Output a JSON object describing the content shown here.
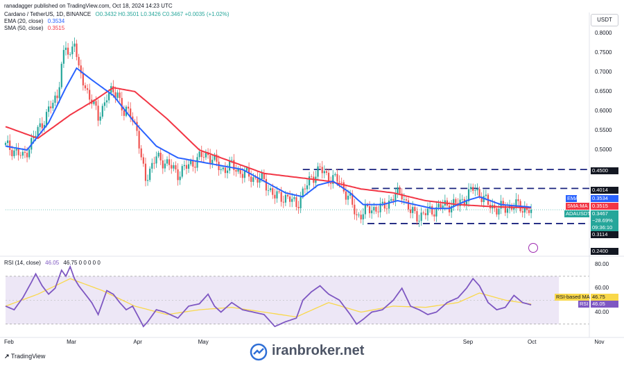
{
  "publisher_line": "ranadagger published on TradingView.com, Oct 18, 2024 14:23 UTC",
  "header": {
    "symbol": "Cardano / TetherUS, 1D, BINANCE",
    "ohlc": "O0.3432 H0.3501 L0.3426 C0.3467 +0.0035 (+1.02%)",
    "ema_label": "EMA (20, close)",
    "ema_value": "0.3534",
    "sma_label": "SMA (50, close)",
    "sma_value": "0.3515",
    "rsi_label": "RSI (14, close)",
    "rsi_value": "46.05",
    "rsi_extra": "46.75  0  0  0  0  0"
  },
  "currency_button": "USDT",
  "footer_logo": "TradingView",
  "watermark": "iranbroker.net",
  "colors": {
    "up": "#26a69a",
    "down": "#ef5350",
    "ema": "#2962ff",
    "sma": "#f23645",
    "rsi": "#7e57c2",
    "rsi_ma": "#f9d84a",
    "rsi_band": "#ede7f6",
    "levels": "#1a237e"
  },
  "badges": {
    "level_high": "0.4500",
    "level_mid": "0.4014",
    "ema": "EMA",
    "ema_value": "0.3534",
    "sma": "SMA:MA",
    "sma_value": "0.3515",
    "symbol": "ADAUSDT",
    "price": "0.3467",
    "change": "−28.69%",
    "countdown": "09:36:10",
    "level_low": "0.3114",
    "bottom": "0.2400",
    "rsi_ma_label": "RSI-based MA",
    "rsi_ma_value": "46.75",
    "rsi_label": "RSI",
    "rsi_value": "46.05"
  },
  "chart_data": {
    "type": "candlestick",
    "price_axis": {
      "ticks": [
        "0.8000",
        "0.7500",
        "0.7000",
        "0.6500",
        "0.6000",
        "0.5500",
        "0.5000",
        "0.2400"
      ],
      "ylim": [
        0.24,
        0.81
      ]
    },
    "rsi_axis": {
      "ticks": [
        "80.00",
        "60.00",
        "40.00"
      ],
      "ylim": [
        20,
        85
      ],
      "band": [
        30,
        70
      ]
    },
    "x_labels": [
      "Feb",
      "Mar",
      "Apr",
      "May",
      "Sep",
      "Oct",
      "Nov"
    ],
    "x_label_days": [
      0,
      29,
      60,
      90,
      213,
      243,
      274
    ],
    "horizontal_levels": [
      0.45,
      0.4014,
      0.3114
    ],
    "close_anchors": [
      [
        0,
        0.51
      ],
      [
        4,
        0.5
      ],
      [
        8,
        0.48
      ],
      [
        12,
        0.52
      ],
      [
        16,
        0.56
      ],
      [
        20,
        0.6
      ],
      [
        24,
        0.64
      ],
      [
        26,
        0.72
      ],
      [
        28,
        0.76
      ],
      [
        30,
        0.74
      ],
      [
        32,
        0.79
      ],
      [
        34,
        0.7
      ],
      [
        37,
        0.66
      ],
      [
        40,
        0.63
      ],
      [
        43,
        0.58
      ],
      [
        47,
        0.64
      ],
      [
        52,
        0.65
      ],
      [
        55,
        0.59
      ],
      [
        58,
        0.6
      ],
      [
        61,
        0.55
      ],
      [
        63,
        0.47
      ],
      [
        65,
        0.43
      ],
      [
        70,
        0.48
      ],
      [
        74,
        0.47
      ],
      [
        80,
        0.44
      ],
      [
        85,
        0.46
      ],
      [
        90,
        0.48
      ],
      [
        94,
        0.49
      ],
      [
        97,
        0.47
      ],
      [
        100,
        0.45
      ],
      [
        105,
        0.46
      ],
      [
        110,
        0.44
      ],
      [
        115,
        0.43
      ],
      [
        120,
        0.42
      ],
      [
        125,
        0.38
      ],
      [
        130,
        0.38
      ],
      [
        135,
        0.36
      ],
      [
        138,
        0.39
      ],
      [
        142,
        0.43
      ],
      [
        146,
        0.45
      ],
      [
        150,
        0.43
      ],
      [
        155,
        0.42
      ],
      [
        160,
        0.37
      ],
      [
        163,
        0.33
      ],
      [
        166,
        0.34
      ],
      [
        170,
        0.35
      ],
      [
        175,
        0.35
      ],
      [
        180,
        0.38
      ],
      [
        184,
        0.39
      ],
      [
        188,
        0.34
      ],
      [
        192,
        0.33
      ],
      [
        196,
        0.34
      ],
      [
        200,
        0.35
      ],
      [
        205,
        0.36
      ],
      [
        210,
        0.36
      ],
      [
        214,
        0.38
      ],
      [
        217,
        0.4
      ],
      [
        220,
        0.39
      ],
      [
        224,
        0.36
      ],
      [
        228,
        0.35
      ],
      [
        232,
        0.35
      ],
      [
        236,
        0.36
      ],
      [
        240,
        0.35
      ],
      [
        244,
        0.3467
      ]
    ],
    "ema20_anchors": [
      [
        0,
        0.51
      ],
      [
        10,
        0.5
      ],
      [
        20,
        0.57
      ],
      [
        28,
        0.66
      ],
      [
        33,
        0.71
      ],
      [
        40,
        0.68
      ],
      [
        50,
        0.64
      ],
      [
        60,
        0.57
      ],
      [
        70,
        0.51
      ],
      [
        80,
        0.48
      ],
      [
        90,
        0.47
      ],
      [
        100,
        0.46
      ],
      [
        110,
        0.45
      ],
      [
        120,
        0.42
      ],
      [
        130,
        0.39
      ],
      [
        138,
        0.38
      ],
      [
        145,
        0.41
      ],
      [
        152,
        0.42
      ],
      [
        160,
        0.39
      ],
      [
        166,
        0.36
      ],
      [
        175,
        0.36
      ],
      [
        182,
        0.37
      ],
      [
        190,
        0.36
      ],
      [
        198,
        0.35
      ],
      [
        206,
        0.35
      ],
      [
        214,
        0.37
      ],
      [
        220,
        0.38
      ],
      [
        230,
        0.36
      ],
      [
        244,
        0.3534
      ]
    ],
    "sma50_anchors": [
      [
        0,
        0.56
      ],
      [
        15,
        0.53
      ],
      [
        30,
        0.59
      ],
      [
        42,
        0.63
      ],
      [
        50,
        0.66
      ],
      [
        60,
        0.65
      ],
      [
        75,
        0.58
      ],
      [
        90,
        0.5
      ],
      [
        105,
        0.47
      ],
      [
        120,
        0.44
      ],
      [
        135,
        0.43
      ],
      [
        150,
        0.42
      ],
      [
        165,
        0.4
      ],
      [
        180,
        0.39
      ],
      [
        195,
        0.37
      ],
      [
        210,
        0.36
      ],
      [
        225,
        0.355
      ],
      [
        244,
        0.3515
      ]
    ],
    "rsi_anchors": [
      [
        0,
        45
      ],
      [
        4,
        42
      ],
      [
        8,
        52
      ],
      [
        12,
        65
      ],
      [
        14,
        72
      ],
      [
        17,
        62
      ],
      [
        20,
        55
      ],
      [
        23,
        60
      ],
      [
        26,
        75
      ],
      [
        28,
        70
      ],
      [
        30,
        78
      ],
      [
        32,
        68
      ],
      [
        34,
        62
      ],
      [
        37,
        55
      ],
      [
        40,
        48
      ],
      [
        43,
        38
      ],
      [
        47,
        58
      ],
      [
        50,
        55
      ],
      [
        53,
        48
      ],
      [
        56,
        42
      ],
      [
        59,
        45
      ],
      [
        62,
        35
      ],
      [
        64,
        28
      ],
      [
        66,
        32
      ],
      [
        70,
        42
      ],
      [
        74,
        40
      ],
      [
        80,
        35
      ],
      [
        85,
        45
      ],
      [
        90,
        47
      ],
      [
        94,
        55
      ],
      [
        97,
        45
      ],
      [
        100,
        40
      ],
      [
        105,
        48
      ],
      [
        110,
        42
      ],
      [
        115,
        40
      ],
      [
        120,
        38
      ],
      [
        125,
        28
      ],
      [
        130,
        32
      ],
      [
        135,
        35
      ],
      [
        138,
        50
      ],
      [
        142,
        57
      ],
      [
        146,
        62
      ],
      [
        150,
        55
      ],
      [
        155,
        50
      ],
      [
        160,
        38
      ],
      [
        163,
        30
      ],
      [
        166,
        34
      ],
      [
        170,
        40
      ],
      [
        175,
        42
      ],
      [
        180,
        50
      ],
      [
        184,
        60
      ],
      [
        188,
        45
      ],
      [
        192,
        42
      ],
      [
        196,
        38
      ],
      [
        200,
        40
      ],
      [
        205,
        48
      ],
      [
        210,
        52
      ],
      [
        214,
        60
      ],
      [
        217,
        68
      ],
      [
        220,
        62
      ],
      [
        224,
        48
      ],
      [
        228,
        42
      ],
      [
        232,
        44
      ],
      [
        236,
        54
      ],
      [
        240,
        48
      ],
      [
        244,
        46.05
      ]
    ],
    "rsi_ma_anchors": [
      [
        0,
        45
      ],
      [
        15,
        55
      ],
      [
        30,
        68
      ],
      [
        45,
        58
      ],
      [
        60,
        45
      ],
      [
        75,
        38
      ],
      [
        90,
        42
      ],
      [
        105,
        44
      ],
      [
        120,
        40
      ],
      [
        135,
        36
      ],
      [
        150,
        48
      ],
      [
        165,
        40
      ],
      [
        180,
        45
      ],
      [
        195,
        44
      ],
      [
        210,
        48
      ],
      [
        220,
        56
      ],
      [
        232,
        50
      ],
      [
        244,
        46.75
      ]
    ]
  }
}
